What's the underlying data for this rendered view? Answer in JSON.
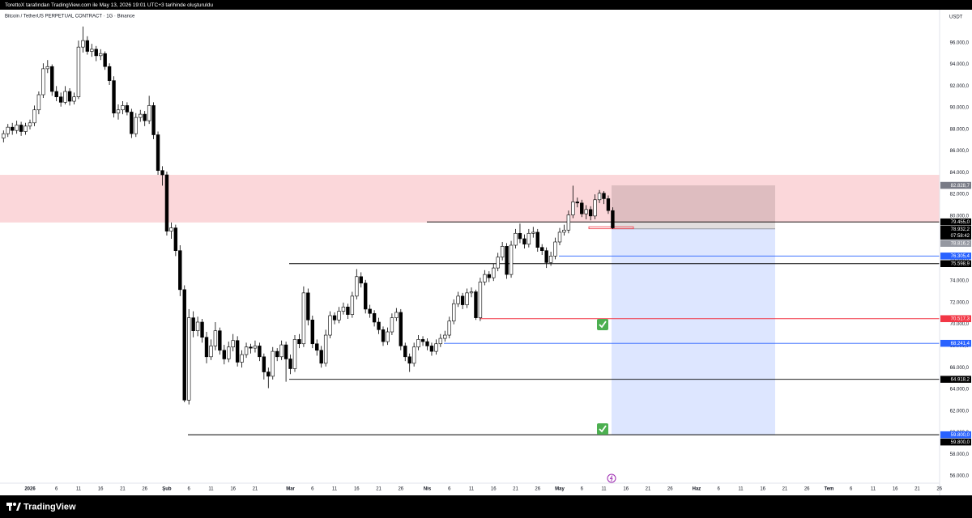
{
  "header": {
    "credit": "TorettoX tarafından TradingView.com ile May 13, 2026 19:01 UTC+3 tarihinde oluşturuldu",
    "symbol": "Bitcoin / TetherUS PERPETUAL CONTRACT · 1G · Binance",
    "currency": "USDT",
    "countdown": "07:58:42",
    "brand": "TradingView"
  },
  "chart_data": {
    "type": "candlestick",
    "up_color": "#ffffff",
    "down_color": "#000000",
    "border_color": "#000000",
    "ylim": [
      55400,
      98900
    ],
    "yticks": [
      {
        "value": 56000,
        "label": "56.000,0"
      },
      {
        "value": 58000,
        "label": "58.000,0"
      },
      {
        "value": 60000,
        "label": "60.000,0"
      },
      {
        "value": 62000,
        "label": "62.000,0"
      },
      {
        "value": 64000,
        "label": "64.000,0"
      },
      {
        "value": 66000,
        "label": "66.000,0"
      },
      {
        "value": 68000,
        "label": "68.000,0"
      },
      {
        "value": 70000,
        "label": "70.000,0"
      },
      {
        "value": 72000,
        "label": "72.000,0"
      },
      {
        "value": 74000,
        "label": "74.000,0"
      },
      {
        "value": 76000,
        "label": "76.000,0"
      },
      {
        "value": 78000,
        "label": "78.000,0"
      },
      {
        "value": 80000,
        "label": "80.000,0"
      },
      {
        "value": 82000,
        "label": "82.000,0"
      },
      {
        "value": 84000,
        "label": "84.000,0"
      },
      {
        "value": 86000,
        "label": "86.000,0"
      },
      {
        "value": 88000,
        "label": "88.000,0"
      },
      {
        "value": 90000,
        "label": "90.000,0"
      },
      {
        "value": 92000,
        "label": "92.000,0"
      },
      {
        "value": 94000,
        "label": "94.000,0"
      },
      {
        "value": 96000,
        "label": "96.000,0"
      }
    ],
    "categories": [
      null,
      null,
      null,
      null,
      null,
      null,
      "2026",
      null,
      null,
      null,
      null,
      null,
      "6",
      null,
      null,
      null,
      null,
      "11",
      null,
      null,
      null,
      null,
      "16",
      null,
      null,
      null,
      null,
      "21",
      null,
      null,
      null,
      null,
      "26",
      null,
      null,
      null,
      null,
      "Şub",
      null,
      null,
      null,
      null,
      "6",
      null,
      null,
      null,
      null,
      "11",
      null,
      null,
      null,
      null,
      "16",
      null,
      null,
      null,
      null,
      "21",
      null,
      null,
      null,
      null,
      null,
      null,
      null,
      "Mar",
      null,
      null,
      null,
      null,
      "6",
      null,
      null,
      null,
      null,
      "11",
      null,
      null,
      null,
      null,
      "16",
      null,
      null,
      null,
      null,
      "21",
      null,
      null,
      null,
      null,
      "26",
      null,
      null,
      null,
      null,
      null,
      "Nis",
      null,
      null,
      null,
      null,
      "6",
      null,
      null,
      null,
      null,
      "11",
      null,
      null,
      null,
      null,
      "16",
      null,
      null,
      null,
      null,
      "21",
      null,
      null,
      null,
      null,
      "26",
      null,
      null,
      null,
      null,
      "May",
      null,
      null,
      null,
      null,
      "6",
      null,
      null,
      null,
      null,
      "11",
      null,
      null,
      null,
      null,
      "16",
      null,
      null,
      null,
      null,
      "21",
      null,
      null,
      null,
      null,
      "26",
      null,
      null,
      null,
      null,
      null,
      "Haz",
      null,
      null,
      null,
      null,
      "6",
      null,
      null,
      null,
      null,
      "11",
      null,
      null,
      null,
      null,
      "16",
      null,
      null,
      null,
      null,
      "21",
      null,
      null,
      null,
      null,
      "26",
      null,
      null,
      null,
      null,
      "Tem",
      null,
      null,
      null,
      null,
      "6",
      null,
      null,
      null,
      null,
      "11",
      null,
      null,
      null,
      null,
      "16",
      null,
      null,
      null,
      null,
      "21",
      null,
      null,
      null,
      null,
      "26"
    ],
    "ohlc": [
      [
        87200,
        87900,
        86800,
        87600
      ],
      [
        87600,
        88500,
        87300,
        88200
      ],
      [
        88200,
        88600,
        87500,
        87900
      ],
      [
        87900,
        88800,
        87600,
        88400
      ],
      [
        88400,
        88700,
        87400,
        87800
      ],
      [
        87800,
        88600,
        87500,
        88300
      ],
      [
        88300,
        88900,
        88000,
        88600
      ],
      [
        88600,
        90200,
        88300,
        89800
      ],
      [
        89800,
        91500,
        89400,
        91200
      ],
      [
        91200,
        94100,
        90900,
        93600
      ],
      [
        93600,
        94400,
        93200,
        93800
      ],
      [
        93800,
        94000,
        91100,
        91500
      ],
      [
        91500,
        92000,
        90600,
        91000
      ],
      [
        91000,
        91400,
        90100,
        90500
      ],
      [
        90500,
        92000,
        90300,
        91500
      ],
      [
        91500,
        91800,
        90200,
        90600
      ],
      [
        90600,
        91400,
        90300,
        91000
      ],
      [
        91000,
        96200,
        90800,
        95600
      ],
      [
        95600,
        97500,
        95100,
        96200
      ],
      [
        96200,
        96600,
        94900,
        95200
      ],
      [
        95200,
        95900,
        94700,
        95400
      ],
      [
        95400,
        95700,
        94300,
        94800
      ],
      [
        94800,
        95400,
        94400,
        95000
      ],
      [
        95000,
        95200,
        93500,
        93800
      ],
      [
        93800,
        94100,
        92100,
        92500
      ],
      [
        92500,
        92900,
        89100,
        89500
      ],
      [
        89500,
        90300,
        88900,
        89800
      ],
      [
        89800,
        90600,
        89400,
        90200
      ],
      [
        90200,
        90500,
        89300,
        89600
      ],
      [
        89600,
        89900,
        87200,
        87600
      ],
      [
        87600,
        89500,
        87300,
        89100
      ],
      [
        89100,
        89800,
        88700,
        89400
      ],
      [
        89400,
        89700,
        88300,
        88800
      ],
      [
        88800,
        91100,
        88500,
        90200
      ],
      [
        90200,
        90500,
        87100,
        87500
      ],
      [
        87500,
        87800,
        83800,
        84200
      ],
      [
        84200,
        84600,
        82800,
        83800
      ],
      [
        83800,
        84100,
        78200,
        78600
      ],
      [
        78600,
        79400,
        77900,
        78900
      ],
      [
        78900,
        79200,
        76300,
        76800
      ],
      [
        76800,
        77300,
        72600,
        73200
      ],
      [
        73200,
        73600,
        62800,
        63000
      ],
      [
        63000,
        71400,
        62600,
        70600
      ],
      [
        70600,
        71200,
        68800,
        69400
      ],
      [
        69400,
        70700,
        68900,
        70200
      ],
      [
        70200,
        70500,
        68300,
        68800
      ],
      [
        68800,
        69300,
        66400,
        67000
      ],
      [
        67000,
        68600,
        66700,
        68000
      ],
      [
        68000,
        70200,
        67600,
        69400
      ],
      [
        69400,
        69700,
        67200,
        67600
      ],
      [
        67600,
        68100,
        66300,
        66800
      ],
      [
        66800,
        68400,
        66500,
        67900
      ],
      [
        67900,
        69100,
        67500,
        68500
      ],
      [
        68500,
        68900,
        66100,
        66500
      ],
      [
        66500,
        67600,
        66000,
        67200
      ],
      [
        67200,
        68300,
        66900,
        67900
      ],
      [
        67900,
        68200,
        67300,
        67800
      ],
      [
        67800,
        68500,
        67400,
        68000
      ],
      [
        68000,
        68300,
        66600,
        67000
      ],
      [
        67000,
        67300,
        64900,
        65600
      ],
      [
        65600,
        66000,
        64100,
        65200
      ],
      [
        65200,
        67900,
        64900,
        67500
      ],
      [
        67500,
        67800,
        66600,
        67000
      ],
      [
        67000,
        68500,
        66700,
        68100
      ],
      [
        68100,
        68400,
        64700,
        66800
      ],
      [
        66800,
        67200,
        65400,
        65900
      ],
      [
        65900,
        69000,
        65600,
        68600
      ],
      [
        68600,
        69100,
        67800,
        68200
      ],
      [
        68200,
        73500,
        67900,
        72900
      ],
      [
        72900,
        73300,
        69900,
        70400
      ],
      [
        70400,
        70800,
        67800,
        68200
      ],
      [
        68200,
        68600,
        67100,
        67600
      ],
      [
        67600,
        68000,
        66000,
        66400
      ],
      [
        66400,
        69500,
        66100,
        69000
      ],
      [
        69000,
        71200,
        68700,
        70800
      ],
      [
        70800,
        71100,
        70000,
        70400
      ],
      [
        70400,
        71600,
        70100,
        71200
      ],
      [
        71200,
        72000,
        70900,
        71600
      ],
      [
        71600,
        71900,
        70500,
        70900
      ],
      [
        70900,
        73000,
        70600,
        72600
      ],
      [
        72600,
        75100,
        72300,
        74400
      ],
      [
        74400,
        74800,
        73400,
        73800
      ],
      [
        73800,
        74100,
        71000,
        71400
      ],
      [
        71400,
        71800,
        70600,
        71000
      ],
      [
        71000,
        71300,
        69800,
        70200
      ],
      [
        70200,
        70600,
        69100,
        69500
      ],
      [
        69500,
        69800,
        68000,
        68400
      ],
      [
        68400,
        69700,
        68100,
        69300
      ],
      [
        69300,
        71000,
        69000,
        70600
      ],
      [
        70600,
        71500,
        70300,
        71100
      ],
      [
        71100,
        71400,
        67600,
        68000
      ],
      [
        68000,
        68300,
        66600,
        67000
      ],
      [
        67000,
        67300,
        65600,
        66400
      ],
      [
        66400,
        68300,
        66100,
        67900
      ],
      [
        67900,
        69000,
        67600,
        68600
      ],
      [
        68600,
        68900,
        68000,
        68400
      ],
      [
        68400,
        68700,
        67600,
        68000
      ],
      [
        68000,
        68300,
        67100,
        67500
      ],
      [
        67500,
        68600,
        67200,
        68200
      ],
      [
        68200,
        69100,
        67900,
        68700
      ],
      [
        68700,
        69400,
        68400,
        69000
      ],
      [
        69000,
        70700,
        68700,
        70300
      ],
      [
        70300,
        72300,
        70000,
        71900
      ],
      [
        71900,
        73000,
        71600,
        72600
      ],
      [
        72600,
        72900,
        71400,
        71800
      ],
      [
        71800,
        73300,
        71500,
        72900
      ],
      [
        72900,
        73400,
        72500,
        73000
      ],
      [
        73000,
        73200,
        70400,
        70600
      ],
      [
        70600,
        74300,
        70300,
        73900
      ],
      [
        73900,
        75000,
        73600,
        74600
      ],
      [
        74600,
        74900,
        73900,
        74300
      ],
      [
        74300,
        75600,
        74000,
        75200
      ],
      [
        75200,
        76600,
        74900,
        76200
      ],
      [
        76200,
        77600,
        75900,
        77200
      ],
      [
        77200,
        77500,
        74200,
        74600
      ],
      [
        74600,
        77700,
        74300,
        77300
      ],
      [
        77300,
        78800,
        77000,
        78400
      ],
      [
        78400,
        79300,
        77500,
        77900
      ],
      [
        77900,
        78300,
        77000,
        77400
      ],
      [
        77400,
        78800,
        77100,
        78400
      ],
      [
        78400,
        79000,
        78000,
        78500
      ],
      [
        78500,
        78800,
        76700,
        77100
      ],
      [
        77100,
        77400,
        76400,
        76800
      ],
      [
        76800,
        77100,
        75200,
        75700
      ],
      [
        75700,
        76700,
        75400,
        76300
      ],
      [
        76300,
        78000,
        76000,
        77600
      ],
      [
        77600,
        78900,
        77300,
        78500
      ],
      [
        78500,
        79200,
        78200,
        78700
      ],
      [
        78700,
        80500,
        78400,
        80100
      ],
      [
        80100,
        82800,
        79800,
        81300
      ],
      [
        81300,
        81700,
        80800,
        81200
      ],
      [
        81200,
        81500,
        79900,
        80200
      ],
      [
        80200,
        81000,
        79700,
        80600
      ],
      [
        80600,
        80900,
        79600,
        80000
      ],
      [
        80000,
        82000,
        79700,
        81500
      ],
      [
        81500,
        82400,
        81200,
        82100
      ],
      [
        82100,
        82300,
        81100,
        81600
      ],
      [
        81600,
        81900,
        80200,
        80500
      ],
      [
        80500,
        80800,
        78800,
        78900
      ],
      null,
      null,
      null,
      null,
      null,
      null,
      null,
      null,
      null,
      null,
      null,
      null,
      null,
      null,
      null,
      null,
      null,
      null,
      null,
      null,
      null,
      null,
      null,
      null,
      null,
      null,
      null,
      null,
      null,
      null,
      null,
      null,
      null,
      null,
      null,
      null,
      null,
      null,
      null,
      null,
      null,
      null,
      null,
      null,
      null,
      null,
      null,
      null,
      null,
      null,
      null,
      null,
      null,
      null,
      null,
      null,
      null,
      null,
      null,
      null,
      null,
      null,
      null,
      null,
      null,
      null,
      null,
      null,
      null,
      null,
      null,
      null,
      null,
      null
    ],
    "zone": [
      79400,
      83800
    ],
    "zone_color": "#fbd7da",
    "levels": [
      {
        "value": 82828.7,
        "label": "82.828,7",
        "color": "#787b86"
      },
      {
        "value": 79455,
        "label": "79.455,0",
        "color": "#000000"
      },
      {
        "value": 78932.2,
        "label": "78.932,2",
        "color": "#000000"
      },
      {
        "value": 78816.2,
        "label": "78.816,2",
        "color": "#9598a1"
      },
      {
        "value": 76305.4,
        "label": "76.305,4",
        "color": "#2962ff"
      },
      {
        "value": 75598.9,
        "label": "75.598,9",
        "color": "#000000"
      },
      {
        "value": 70517.3,
        "label": "70.517,3",
        "color": "#f23645"
      },
      {
        "value": 68241.4,
        "label": "68.241,4",
        "color": "#2962ff"
      },
      {
        "value": 64918.2,
        "label": "64.918,2",
        "color": "#000000"
      },
      {
        "value": 59800,
        "label": "59.800,0",
        "color": "#2962ff"
      },
      {
        "value": 59800,
        "label": "59.800,0",
        "color": "#000000"
      }
    ]
  }
}
